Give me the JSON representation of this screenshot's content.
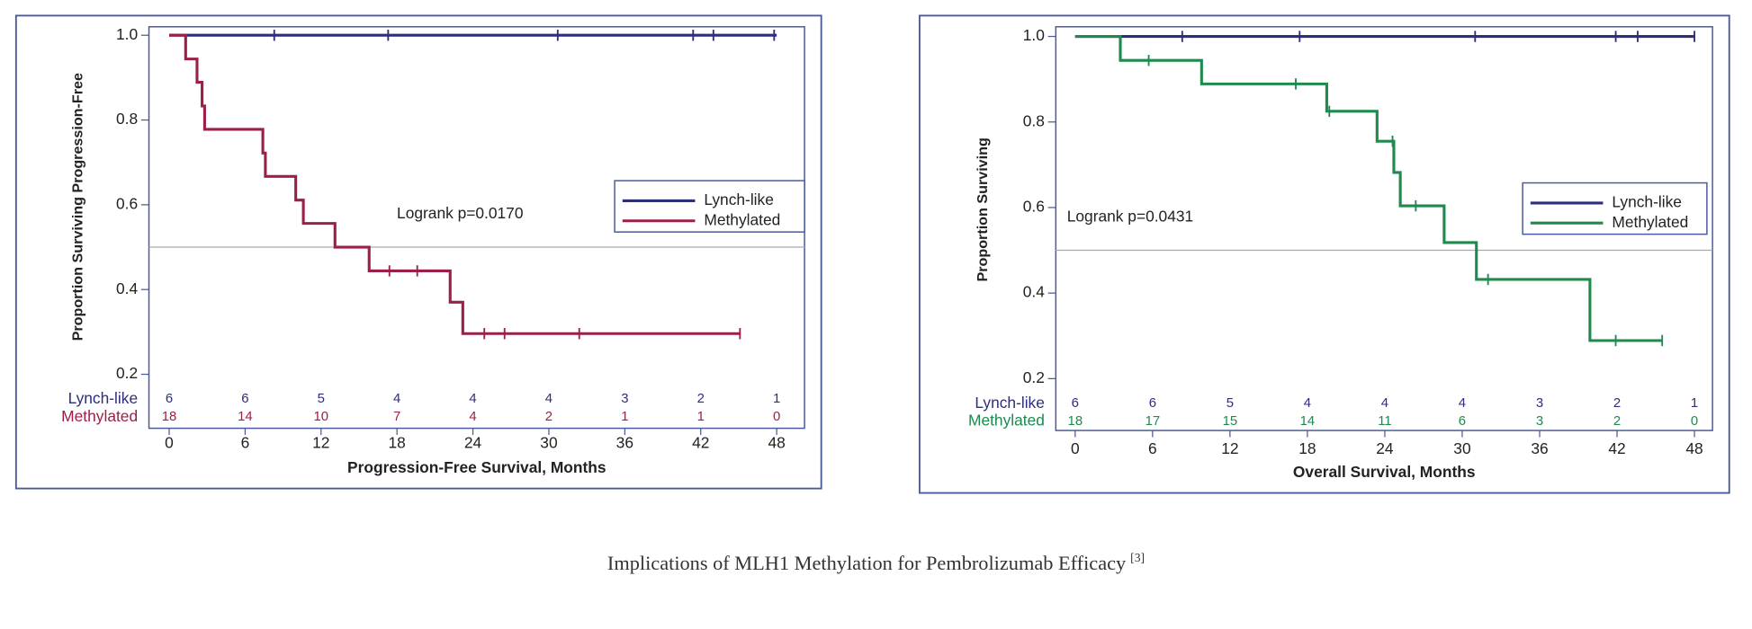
{
  "chart_data": [
    {
      "type": "line",
      "step": true,
      "x_label": "Progression-Free Survival, Months",
      "y_label": "Proportion Surviving Progression-Free",
      "annotation": "Logrank p=0.0170",
      "xlim": [
        -1.6,
        50.2
      ],
      "xticks": [
        0,
        6,
        12,
        18,
        24,
        30,
        36,
        42,
        48
      ],
      "ylim": [
        0.17,
        1.02
      ],
      "yticks": [
        0.2,
        0.4,
        0.6,
        0.8,
        {
          "value": 1,
          "label": "1.0"
        }
      ],
      "reference_line": 0.5,
      "series": [
        {
          "name": "Lynch-like",
          "color": "#2e2e7a",
          "x": [
            0,
            48
          ],
          "values": [
            1,
            1
          ],
          "censored": [
            8.3,
            17.3,
            30.7,
            41.4,
            43.0,
            47.8
          ],
          "at_risk": [
            6,
            6,
            5,
            4,
            4,
            4,
            3,
            2,
            1
          ]
        },
        {
          "name": "Methylated",
          "color": "#9b2046",
          "x": [
            0,
            1.3,
            2.2,
            2.6,
            2.8,
            7.4,
            7.6,
            10.0,
            10.6,
            13.1,
            15.8,
            22.2,
            23.2,
            45.1
          ],
          "values": [
            1,
            0.944,
            0.889,
            0.833,
            0.778,
            0.722,
            0.667,
            0.611,
            0.556,
            0.5,
            0.444,
            0.37,
            0.296,
            0.296
          ],
          "censored": [
            17.4,
            19.6,
            24.9,
            26.5,
            32.4,
            45.1
          ],
          "at_risk": [
            18,
            14,
            10,
            7,
            4,
            2,
            1,
            1,
            0
          ]
        }
      ]
    },
    {
      "type": "line",
      "step": true,
      "x_label": "Overall Survival, Months",
      "y_label": "Proportion Surviving",
      "annotation": "Logrank p=0.0431",
      "xlim": [
        -1.5,
        49.4
      ],
      "xticks": [
        0,
        6,
        12,
        18,
        24,
        30,
        36,
        42,
        48
      ],
      "ylim": [
        0.17,
        1.02
      ],
      "yticks": [
        0.2,
        0.4,
        0.6,
        0.8,
        {
          "value": 1,
          "label": "1.0"
        }
      ],
      "reference_line": 0.5,
      "series": [
        {
          "name": "Lynch-like",
          "color": "#2e2e7a",
          "x": [
            0,
            48
          ],
          "values": [
            1,
            1
          ],
          "censored": [
            8.3,
            17.4,
            31.0,
            41.9,
            43.6,
            48
          ],
          "at_risk": [
            6,
            6,
            5,
            4,
            4,
            4,
            3,
            2,
            1
          ]
        },
        {
          "name": "Methylated",
          "color": "#1e8a4e",
          "x": [
            0,
            3.5,
            9.8,
            19.5,
            23.4,
            24.7,
            25.2,
            28.6,
            31.1,
            39.9,
            45.5
          ],
          "values": [
            1,
            0.944,
            0.889,
            0.825,
            0.755,
            0.682,
            0.604,
            0.518,
            0.432,
            0.289,
            0.289
          ],
          "censored": [
            5.7,
            17.1,
            19.7,
            24.6,
            26.4,
            32.0,
            41.9,
            45.5
          ],
          "at_risk": [
            18,
            17,
            15,
            14,
            11,
            6,
            3,
            2,
            0
          ]
        }
      ]
    }
  ],
  "caption": {
    "text": "Implications of MLH1 Methylation for Pembrolizumab Efficacy",
    "ref": "[3]"
  }
}
